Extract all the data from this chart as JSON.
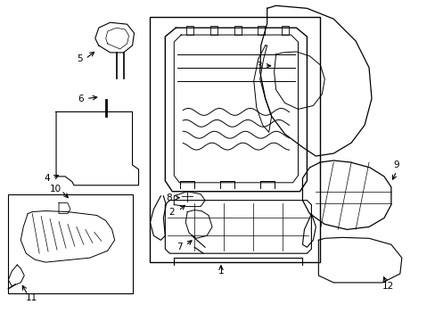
{
  "background_color": "#ffffff",
  "line_color": "#000000",
  "text_color": "#000000",
  "fig_width": 4.89,
  "fig_height": 3.6,
  "dpi": 100,
  "font_size": 7.5
}
